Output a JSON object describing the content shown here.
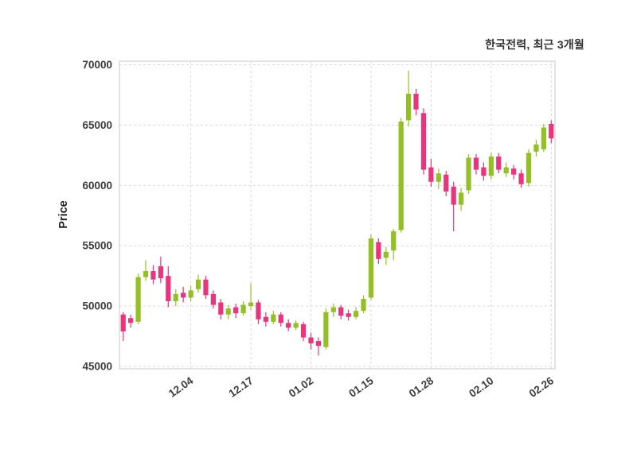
{
  "chart_data": {
    "type": "candlestick",
    "title": "한국전력, 최근 3개월",
    "ylabel": "Price",
    "ylim": [
      44800,
      70300
    ],
    "yticks": [
      45000,
      50000,
      55000,
      60000,
      65000,
      70000
    ],
    "grid": "dashed",
    "xticks": [
      {
        "index": 9,
        "label": "12.04"
      },
      {
        "index": 17,
        "label": "12.17"
      },
      {
        "index": 25,
        "label": "01.02"
      },
      {
        "index": 33,
        "label": "01.15"
      },
      {
        "index": 41,
        "label": "01.28"
      },
      {
        "index": 49,
        "label": "02.10"
      },
      {
        "index": 57,
        "label": "02.26"
      }
    ],
    "ohlc_format": [
      "open",
      "high",
      "low",
      "close"
    ],
    "candles": [
      [
        49300,
        49500,
        47100,
        47900
      ],
      [
        49000,
        49300,
        48200,
        48600
      ],
      [
        48700,
        52700,
        48500,
        52400
      ],
      [
        52400,
        53800,
        52100,
        52900
      ],
      [
        52900,
        53400,
        51800,
        52200
      ],
      [
        53300,
        54100,
        51900,
        52300
      ],
      [
        52500,
        53300,
        49900,
        50400
      ],
      [
        50400,
        51400,
        50000,
        51000
      ],
      [
        51100,
        51600,
        50300,
        50700
      ],
      [
        50700,
        51700,
        50400,
        51300
      ],
      [
        51400,
        52600,
        51100,
        52200
      ],
      [
        52200,
        52500,
        50600,
        50900
      ],
      [
        51000,
        51300,
        49800,
        50100
      ],
      [
        50300,
        50600,
        48900,
        49300
      ],
      [
        49300,
        50100,
        48900,
        49800
      ],
      [
        49900,
        50200,
        49000,
        49400
      ],
      [
        49400,
        50400,
        49200,
        50100
      ],
      [
        50000,
        51900,
        49700,
        50300
      ],
      [
        50300,
        50500,
        48500,
        48900
      ],
      [
        49100,
        49500,
        48300,
        48700
      ],
      [
        48700,
        49600,
        48500,
        49300
      ],
      [
        49300,
        49500,
        48300,
        48600
      ],
      [
        48600,
        48900,
        47900,
        48200
      ],
      [
        48200,
        48800,
        48000,
        48600
      ],
      [
        48500,
        48700,
        47100,
        47400
      ],
      [
        47400,
        47800,
        46400,
        46900
      ],
      [
        47100,
        47400,
        45900,
        46700
      ],
      [
        46600,
        49800,
        46400,
        49500
      ],
      [
        49500,
        50200,
        49100,
        49900
      ],
      [
        49900,
        50100,
        48900,
        49200
      ],
      [
        49400,
        49700,
        48800,
        49100
      ],
      [
        49100,
        49900,
        48900,
        49600
      ],
      [
        49600,
        50900,
        49400,
        50600
      ],
      [
        50700,
        55900,
        50500,
        55600
      ],
      [
        55300,
        55600,
        53500,
        53900
      ],
      [
        54000,
        54900,
        53400,
        54500
      ],
      [
        54600,
        56400,
        53800,
        56200
      ],
      [
        56300,
        65600,
        56100,
        65300
      ],
      [
        65400,
        69500,
        64900,
        67600
      ],
      [
        67600,
        68000,
        65800,
        66300
      ],
      [
        66000,
        66400,
        60900,
        61300
      ],
      [
        61500,
        62200,
        59900,
        60300
      ],
      [
        60300,
        61400,
        59700,
        61000
      ],
      [
        60900,
        61200,
        59100,
        59500
      ],
      [
        59900,
        60300,
        56200,
        58400
      ],
      [
        58400,
        59800,
        57900,
        59400
      ],
      [
        59600,
        62600,
        59300,
        62300
      ],
      [
        62300,
        62600,
        60900,
        61300
      ],
      [
        61500,
        61900,
        60400,
        60800
      ],
      [
        60800,
        62700,
        60500,
        62400
      ],
      [
        62400,
        62700,
        61000,
        61300
      ],
      [
        61000,
        61900,
        60700,
        61500
      ],
      [
        61400,
        61700,
        60500,
        60900
      ],
      [
        61000,
        61300,
        59800,
        60100
      ],
      [
        60200,
        63000,
        59900,
        62700
      ],
      [
        62800,
        63800,
        62400,
        63400
      ],
      [
        63000,
        65100,
        62800,
        64800
      ],
      [
        65100,
        65400,
        63500,
        63900
      ]
    ],
    "colors": {
      "up": "#95bf27",
      "down": "#e8357d",
      "grid": "#d9d9d9",
      "border": "#c9c9c9",
      "axis_text": "#3c3c3c",
      "background": "#ffffff"
    }
  }
}
